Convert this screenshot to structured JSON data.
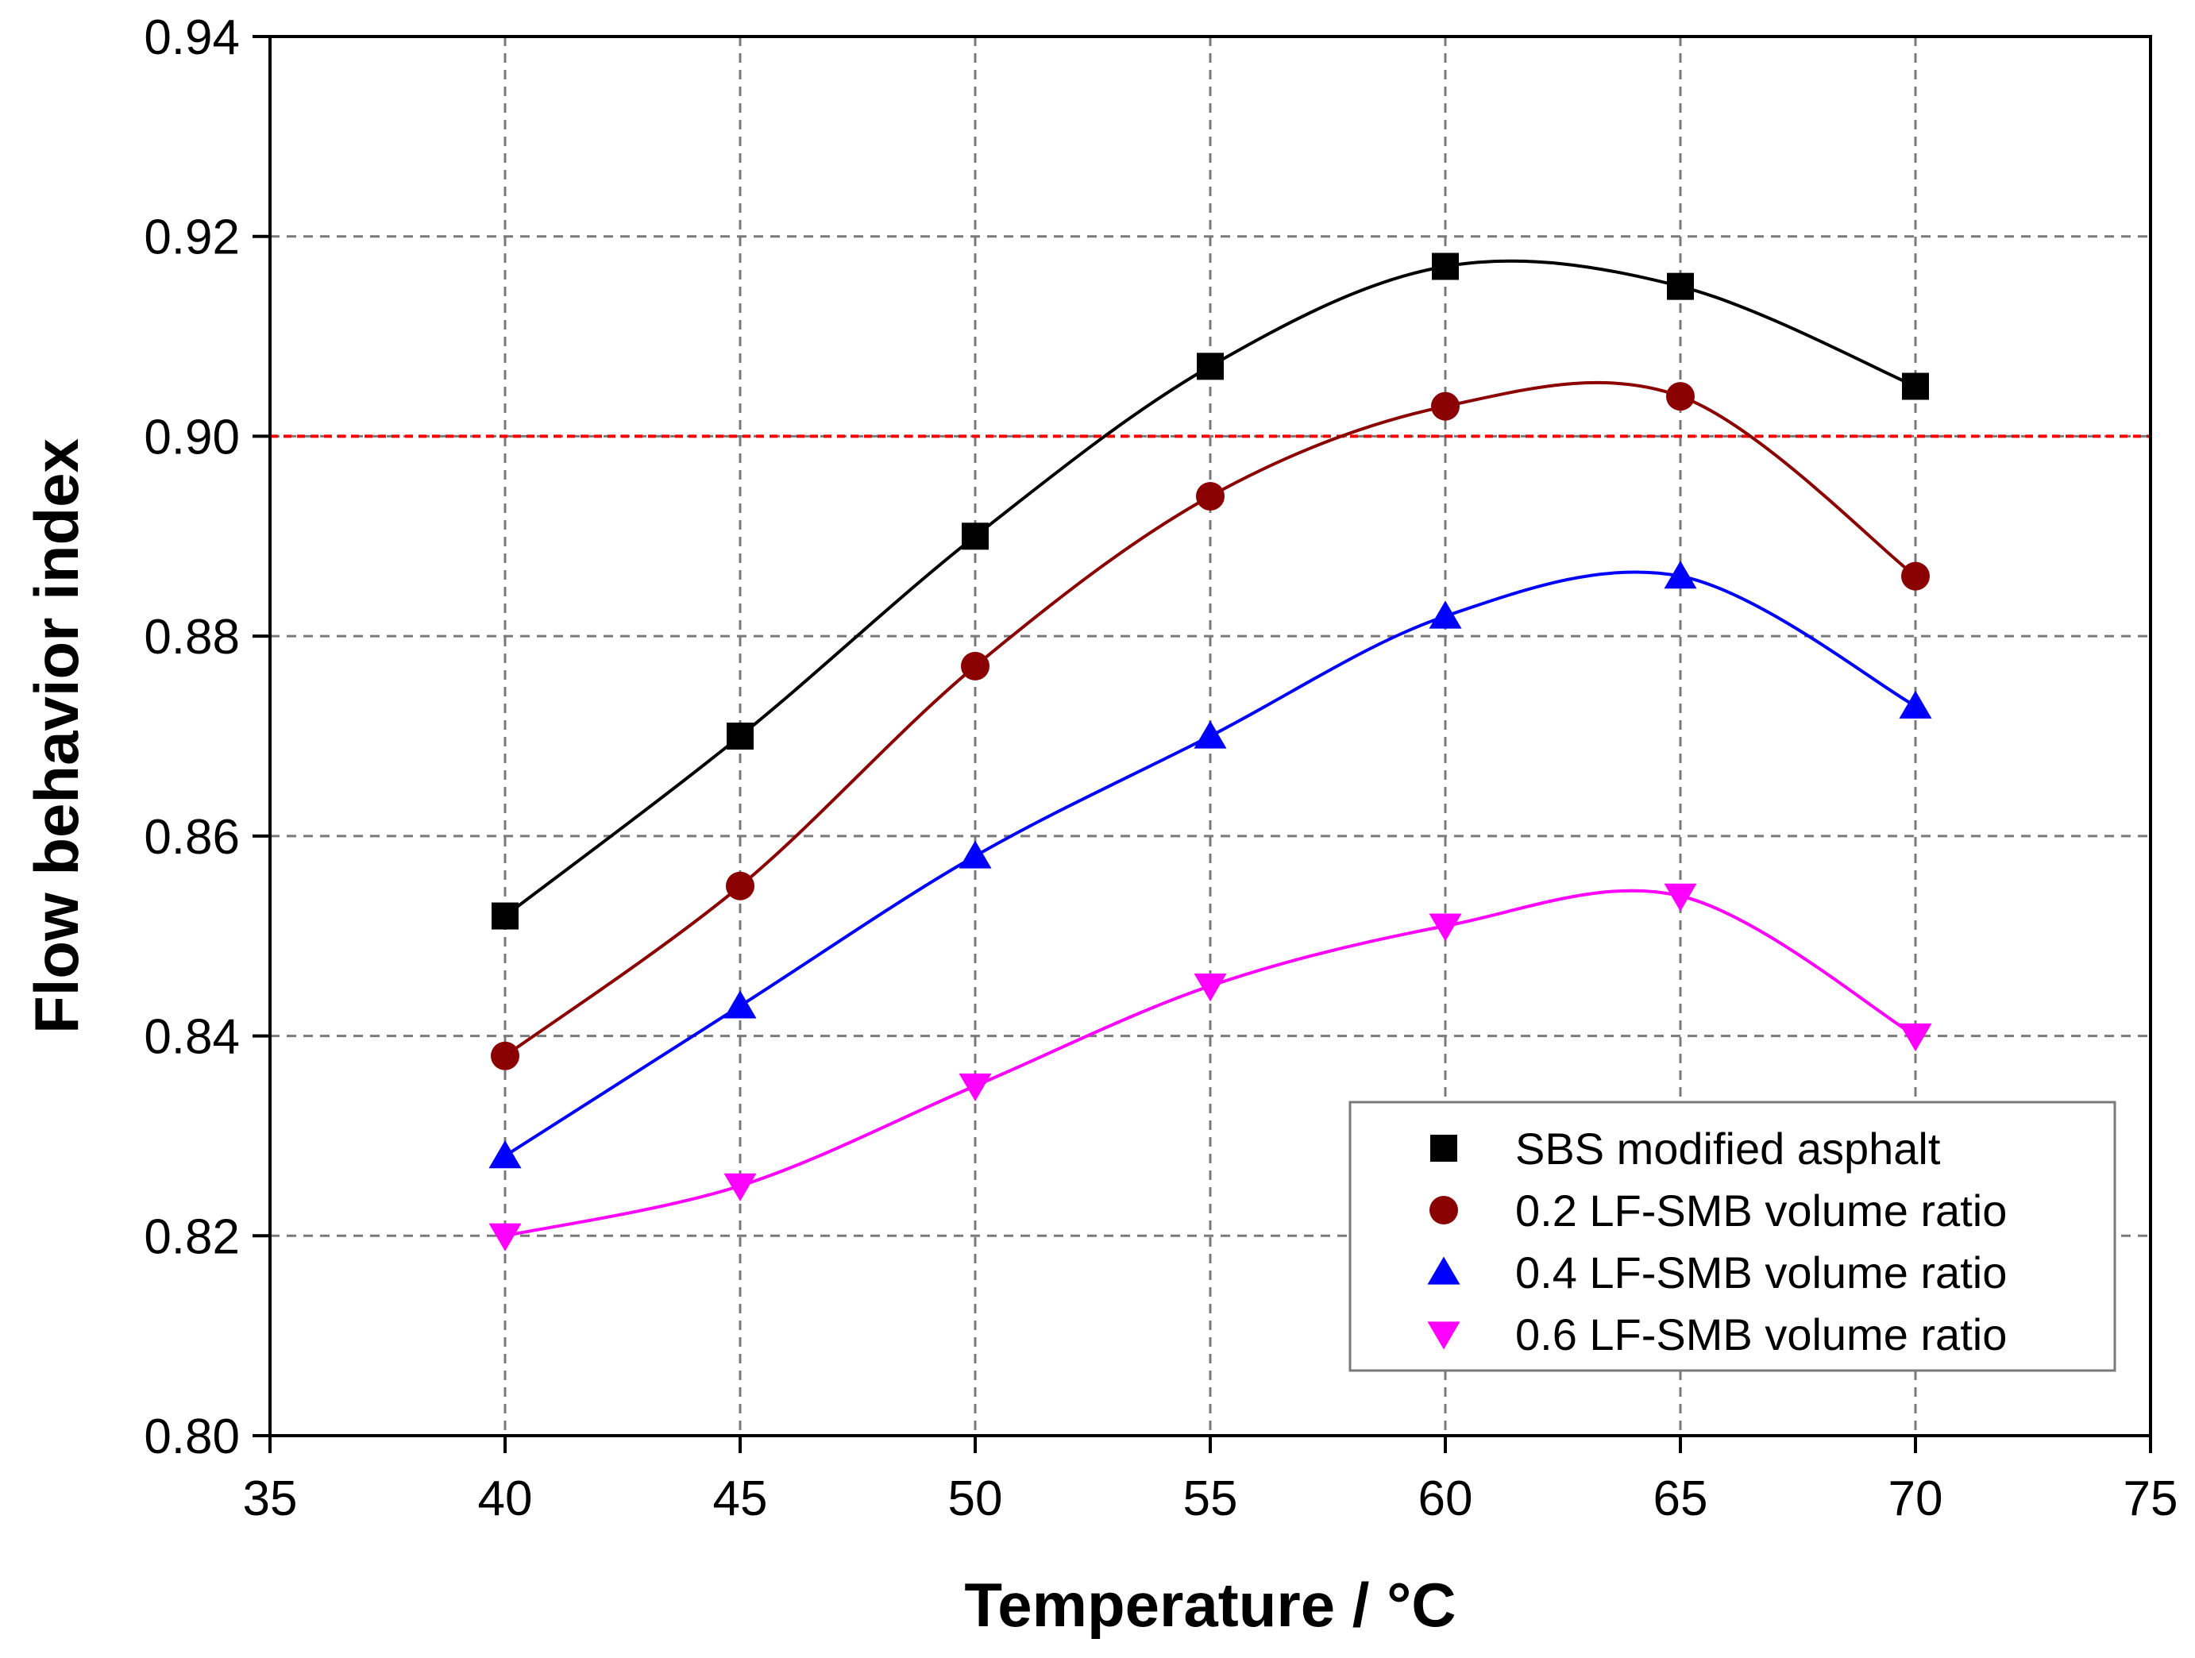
{
  "chart_data": {
    "type": "line",
    "title": "",
    "xlabel": "Temperature / °C",
    "ylabel": "Flow behavior index",
    "xlim": [
      35,
      75
    ],
    "ylim": [
      0.8,
      0.94
    ],
    "xticks": [
      35,
      40,
      45,
      50,
      55,
      60,
      65,
      70,
      75
    ],
    "yticks": [
      0.8,
      0.82,
      0.84,
      0.86,
      0.88,
      0.9,
      0.92,
      0.94
    ],
    "xtick_labels": [
      "35",
      "40",
      "45",
      "50",
      "55",
      "60",
      "65",
      "70",
      "75"
    ],
    "ytick_labels": [
      "0.80",
      "0.82",
      "0.84",
      "0.86",
      "0.88",
      "0.90",
      "0.92",
      "0.94"
    ],
    "grid": true,
    "legend_position": "bottom-right",
    "reference_line": {
      "y": 0.9,
      "color": "#ff0000",
      "style": "dashed"
    },
    "x": [
      40,
      45,
      50,
      55,
      60,
      65,
      70
    ],
    "series": [
      {
        "name": "SBS modified asphalt",
        "marker": "square",
        "color": "#000000",
        "values": [
          0.852,
          0.87,
          0.89,
          0.907,
          0.917,
          0.915,
          0.905
        ]
      },
      {
        "name": "0.2 LF-SMB volume ratio",
        "marker": "circle",
        "color": "#8b0000",
        "values": [
          0.838,
          0.855,
          0.877,
          0.894,
          0.903,
          0.904,
          0.886
        ]
      },
      {
        "name": "0.4 LF-SMB volume ratio",
        "marker": "triangle-up",
        "color": "#0000ff",
        "values": [
          0.828,
          0.843,
          0.858,
          0.87,
          0.882,
          0.886,
          0.873
        ]
      },
      {
        "name": "0.6 LF-SMB volume ratio",
        "marker": "triangle-down",
        "color": "#ff00ff",
        "values": [
          0.82,
          0.825,
          0.835,
          0.845,
          0.851,
          0.854,
          0.84
        ]
      }
    ]
  }
}
